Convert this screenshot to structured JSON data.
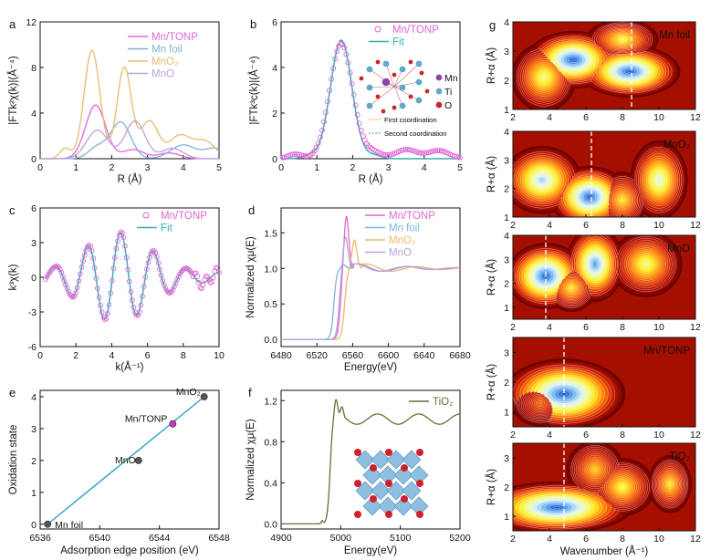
{
  "colors": {
    "mn_tonp": "#e066d6",
    "mn_foil": "#7fb1de",
    "mno2": "#e9b96c",
    "mno": "#b9a3d9",
    "fit": "#35b0b0",
    "tio2": "#6f6a35",
    "fit_line": "#2a9fc4"
  },
  "chart_data": [
    {
      "id": "a",
      "panel_label": "a",
      "type": "line",
      "xlabel": "R (Å)",
      "ylabel": "|FTk²χ(k)|(Å⁻⁴)",
      "xlim": [
        0,
        5
      ],
      "ylim": [
        0,
        12
      ],
      "xticks": [
        "0",
        "1",
        "2",
        "3",
        "4",
        "5"
      ],
      "yticks": [
        "0",
        "4",
        "8",
        "12"
      ],
      "legend": [
        "Mn/TONP",
        "Mn foil",
        "MnO₂",
        "MnO"
      ],
      "series": [
        {
          "name": "Mn/TONP",
          "peaks": [
            [
              1.55,
              4.7,
              0.28
            ],
            [
              2.6,
              0.8,
              0.3
            ],
            [
              3.6,
              0.5,
              0.3
            ]
          ]
        },
        {
          "name": "Mn foil",
          "peaks": [
            [
              2.25,
              3.2,
              0.28
            ],
            [
              1.6,
              1.0,
              0.25
            ],
            [
              4.0,
              1.2,
              0.35
            ],
            [
              4.9,
              0.9,
              0.3
            ]
          ]
        },
        {
          "name": "MnO₂",
          "peaks": [
            [
              1.45,
              9.5,
              0.22
            ],
            [
              2.35,
              8.0,
              0.2
            ],
            [
              3.05,
              3.3,
              0.25
            ],
            [
              0.7,
              0.9,
              0.15
            ],
            [
              3.9,
              2.0,
              0.3
            ],
            [
              4.6,
              1.5,
              0.3
            ]
          ]
        },
        {
          "name": "MnO",
          "peaks": [
            [
              1.6,
              2.5,
              0.3
            ],
            [
              2.65,
              3.3,
              0.28
            ],
            [
              3.7,
              0.9,
              0.3
            ]
          ]
        }
      ]
    },
    {
      "id": "b",
      "panel_label": "b",
      "type": "line",
      "xlabel": "R (Å)",
      "ylabel": "|FTk³c(k)|(Å⁻⁴)",
      "xlim": [
        0,
        5
      ],
      "ylim": [
        0,
        6
      ],
      "xticks": [
        "0",
        "1",
        "2",
        "3",
        "4",
        "5"
      ],
      "yticks": [
        "0",
        "2",
        "4",
        "6"
      ],
      "legend": [
        "Mn/TONP",
        "Fit"
      ],
      "inset_labels": [
        "Mn",
        "Ti",
        "O",
        "First coordination",
        "Second coordination"
      ],
      "series": [
        {
          "name": "Mn/TONP",
          "peaks": [
            [
              1.68,
              5.05,
              0.32
            ],
            [
              0.4,
              0.2,
              0.2
            ],
            [
              2.55,
              0.3,
              0.25
            ],
            [
              3.5,
              0.4,
              0.3
            ],
            [
              4.4,
              0.35,
              0.3
            ]
          ]
        },
        {
          "name": "Fit",
          "peaks": [
            [
              1.68,
              5.2,
              0.3
            ],
            [
              0.8,
              0.15,
              0.2
            ],
            [
              2.6,
              0.15,
              0.2
            ]
          ]
        }
      ]
    },
    {
      "id": "c",
      "panel_label": "c",
      "type": "line",
      "xlabel": "k(Å⁻¹)",
      "ylabel": "k³χ(k)",
      "xlim": [
        0,
        10
      ],
      "ylim": [
        -6,
        6
      ],
      "xticks": [
        "0",
        "2",
        "4",
        "6",
        "8",
        "10"
      ],
      "yticks": [
        "-6",
        "-3",
        "0",
        "3",
        "6"
      ],
      "legend": [
        "Mn/TONP",
        "Fit"
      ]
    },
    {
      "id": "d",
      "panel_label": "d",
      "type": "line",
      "xlabel": "Energy(eV)",
      "ylabel": "Normalized χμ(E)",
      "xlim": [
        6480,
        6680
      ],
      "ylim": [
        -0.1,
        1.85
      ],
      "xticks": [
        "6480",
        "6520",
        "6560",
        "6600",
        "6640",
        "6680"
      ],
      "yticks": [
        "0.0",
        "0.5",
        "1.0",
        "1.5"
      ],
      "legend": [
        "Mn/TONP",
        "Mn foil",
        "MnO₂",
        "MnO"
      ],
      "series": [
        {
          "name": "Mn/TONP",
          "e0": 6546.5,
          "peak": 6553,
          "height": 1.75
        },
        {
          "name": "Mn foil",
          "e0": 6539,
          "peak": 6550,
          "height": 1.05
        },
        {
          "name": "MnO₂",
          "e0": 6551,
          "peak": 6562,
          "height": 1.4
        },
        {
          "name": "MnO",
          "e0": 6545,
          "peak": 6552,
          "height": 1.45
        }
      ]
    },
    {
      "id": "e",
      "panel_label": "e",
      "type": "scatter",
      "xlabel": "Adsorption edge position (eV)",
      "ylabel": "Oxidation state",
      "xlim": [
        6536,
        6548
      ],
      "ylim": [
        -0.15,
        4.2
      ],
      "xticks": [
        "6536",
        "6540",
        "6544",
        "6548"
      ],
      "yticks": [
        "0",
        "1",
        "2",
        "3",
        "4"
      ],
      "points": [
        {
          "label": "Mn foil",
          "x": 6536.5,
          "y": 0
        },
        {
          "label": "MnO",
          "x": 6542.6,
          "y": 2
        },
        {
          "label": "Mn/TONP",
          "x": 6544.9,
          "y": 3.15
        },
        {
          "label": "MnO₂",
          "x": 6547.0,
          "y": 4
        }
      ],
      "fit": {
        "x": [
          6536.5,
          6547.0
        ],
        "y": [
          0,
          4
        ]
      }
    },
    {
      "id": "f",
      "panel_label": "f",
      "type": "line",
      "xlabel": "Energy(eV)",
      "ylabel": "Normalized χμ(E)",
      "xlim": [
        4900,
        5200
      ],
      "ylim": [
        -0.05,
        1.3
      ],
      "xticks": [
        "4900",
        "5000",
        "5100",
        "5200"
      ],
      "yticks": [
        "0.0",
        "0.4",
        "0.8",
        "1.2"
      ],
      "legend": [
        "TiO₂"
      ]
    },
    {
      "id": "g",
      "panel_label": "g",
      "type": "heatmap",
      "xlabel": "Wavenumber (Å⁻¹)",
      "ylabel": "R+α (Å)",
      "xticks": [
        "2",
        "4",
        "6",
        "8",
        "10",
        "12"
      ],
      "maps": [
        {
          "name": "Mn foil",
          "yticks": [
            "1",
            "2",
            "3",
            "4"
          ],
          "ylim": [
            1,
            4
          ],
          "dash_x": 8.5,
          "blobs": [
            [
              5.3,
              2.7,
              1.3,
              0.5,
              1.0
            ],
            [
              8.4,
              2.3,
              1.4,
              0.45,
              1.0
            ],
            [
              3.7,
              2.1,
              0.9,
              0.6,
              0.6
            ],
            [
              8.0,
              3.4,
              1.0,
              0.35,
              0.55
            ]
          ]
        },
        {
          "name": "MnO₂",
          "yticks": [
            "1",
            "2",
            "3",
            "4"
          ],
          "ylim": [
            1,
            4
          ],
          "dash_x": 6.3,
          "blobs": [
            [
              6.2,
              1.7,
              1.1,
              0.55,
              1.0
            ],
            [
              3.6,
              2.3,
              1.1,
              0.6,
              0.8
            ],
            [
              10.0,
              2.3,
              0.8,
              0.7,
              0.7
            ],
            [
              8.0,
              1.6,
              0.7,
              0.5,
              0.5
            ]
          ]
        },
        {
          "name": "MnO",
          "yticks": [
            "1",
            "2",
            "3",
            "4"
          ],
          "ylim": [
            0.5,
            4
          ],
          "dash_x": 3.8,
          "blobs": [
            [
              3.8,
              2.3,
              1.1,
              0.7,
              1.0
            ],
            [
              6.5,
              2.8,
              0.8,
              0.8,
              0.9
            ],
            [
              9.3,
              2.8,
              1.0,
              0.7,
              0.6
            ],
            [
              5.2,
              1.8,
              0.7,
              0.5,
              0.5
            ]
          ]
        },
        {
          "name": "Mn/TONP",
          "yticks": [
            "1",
            "2",
            "3"
          ],
          "ylim": [
            0.5,
            3.5
          ],
          "dash_x": 4.8,
          "blobs": [
            [
              4.8,
              1.6,
              1.7,
              0.6,
              1.0
            ],
            [
              3.5,
              1.3,
              0.8,
              0.4,
              0.3
            ]
          ]
        },
        {
          "name": "TiO₂",
          "yticks": [
            "1",
            "2",
            "3"
          ],
          "ylim": [
            0.5,
            3.5
          ],
          "dash_x": 4.8,
          "blobs": [
            [
              4.4,
              1.3,
              2.1,
              0.45,
              1.0
            ],
            [
              8.0,
              2.0,
              0.9,
              0.5,
              0.55
            ],
            [
              10.6,
              2.1,
              0.6,
              0.5,
              0.5
            ],
            [
              6.5,
              2.6,
              0.8,
              0.5,
              0.45
            ]
          ]
        }
      ]
    }
  ]
}
